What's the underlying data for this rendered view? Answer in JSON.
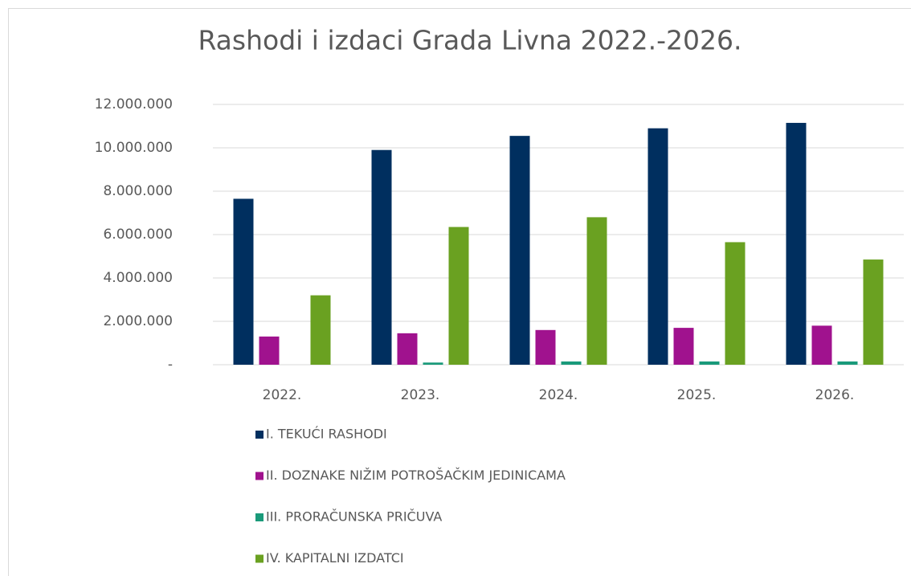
{
  "chart_data": {
    "type": "bar",
    "title": "Rashodi i izdaci Grada Livna 2022.-2026.",
    "categories": [
      "2022.",
      "2023.",
      "2024.",
      "2025.",
      "2026."
    ],
    "series": [
      {
        "name": "I. TEKUĆI RASHODI",
        "color": "#002f5f",
        "values": [
          7650000,
          9900000,
          10550000,
          10900000,
          11150000
        ]
      },
      {
        "name": "II. DOZNAKE NIŽIM POTROŠAČKIM JEDINICAMA",
        "color": "#a0128e",
        "values": [
          1300000,
          1450000,
          1600000,
          1700000,
          1800000
        ]
      },
      {
        "name": "III. PRORAČUNSKA PRIČUVA",
        "color": "#1a9a7a",
        "values": [
          0,
          100000,
          150000,
          150000,
          150000
        ]
      },
      {
        "name": "IV. KAPITALNI IZDATCI",
        "color": "#6aa121",
        "values": [
          3200000,
          6350000,
          6800000,
          5650000,
          4850000
        ]
      }
    ],
    "ylim": [
      0,
      12000000
    ],
    "yticks": [
      {
        "value": 0,
        "label": "-"
      },
      {
        "value": 2000000,
        "label": "2.000.000"
      },
      {
        "value": 4000000,
        "label": "4.000.000"
      },
      {
        "value": 6000000,
        "label": "6.000.000"
      },
      {
        "value": 8000000,
        "label": "8.000.000"
      },
      {
        "value": 10000000,
        "label": "10.000.000"
      },
      {
        "value": 12000000,
        "label": "12.000.000"
      }
    ],
    "grid": true,
    "legend": "bottom"
  }
}
